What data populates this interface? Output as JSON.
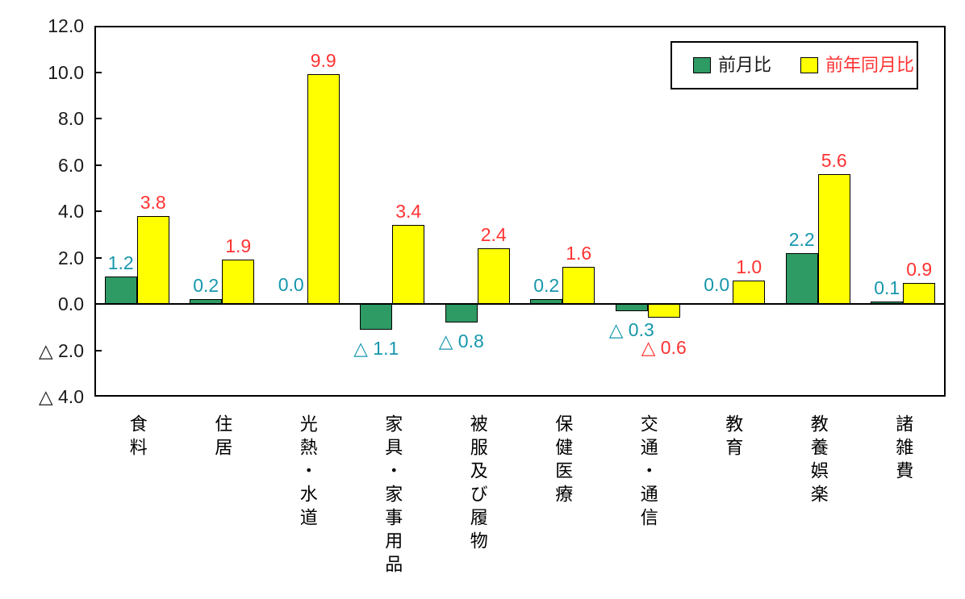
{
  "chart_data": {
    "type": "bar",
    "title": "",
    "xlabel": "",
    "ylabel": "",
    "categories": [
      "食料",
      "住居",
      "光熱・水道",
      "家具・家事用品",
      "被服及び履物",
      "保健医療",
      "交通・通信",
      "教育",
      "教養娯楽",
      "諸雑費"
    ],
    "series": [
      {
        "key": "mom",
        "name": "前月比",
        "color": "#2E9A64",
        "label_color": "#1697AC",
        "name_color": "#1A1A1A",
        "values": [
          1.2,
          0.2,
          0.0,
          -1.1,
          -0.8,
          0.2,
          -0.3,
          0.0,
          2.2,
          0.1
        ]
      },
      {
        "key": "yoy",
        "name": "前年同月比",
        "color": "#FFFF00",
        "label_color": "#FF3333",
        "name_color": "#FF3333",
        "values": [
          3.8,
          1.9,
          9.9,
          3.4,
          2.4,
          1.6,
          -0.6,
          1.0,
          5.6,
          0.9
        ]
      }
    ],
    "ylim": [
      -4,
      12
    ],
    "ytick_step": 2.0,
    "yticks": [
      "12.0",
      "10.0",
      "8.0",
      "6.0",
      "4.0",
      "2.0",
      "0.0",
      "△ 2.0",
      "△ 4.0"
    ],
    "negative_prefix": "△ ",
    "grid": false,
    "legend_position": "top-right"
  }
}
